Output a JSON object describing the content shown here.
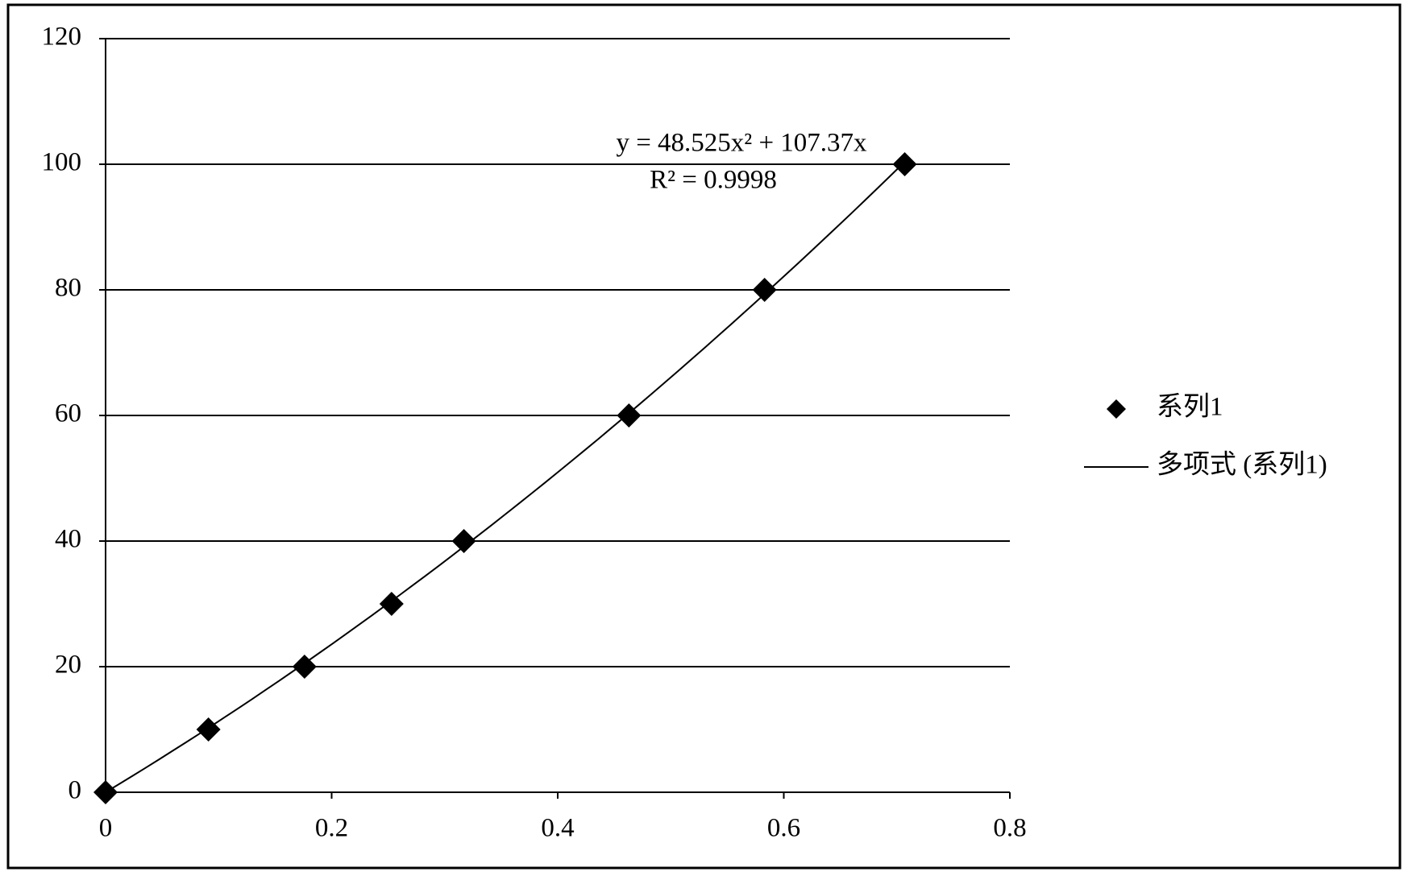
{
  "chart_data": {
    "type": "scatter",
    "x": [
      0,
      0.091,
      0.176,
      0.253,
      0.317,
      0.463,
      0.583,
      0.707
    ],
    "series": [
      {
        "name": "系列1",
        "color": "#000000",
        "values": [
          0,
          10,
          20,
          30,
          40,
          60,
          80,
          100
        ]
      }
    ],
    "trendline": {
      "name": "多项式 (系列1)",
      "type": "polynomial",
      "color": "#000000"
    },
    "annotations": [
      "y = 48.525x² + 107.37x",
      "R² = 0.9998"
    ],
    "xlim": [
      0,
      0.8
    ],
    "xticks": [
      0,
      0.2,
      0.4,
      0.6,
      0.8
    ],
    "ylim": [
      0,
      120
    ],
    "yticks": [
      0,
      20,
      40,
      60,
      80,
      100,
      120
    ],
    "grid": true,
    "legend": "right"
  }
}
